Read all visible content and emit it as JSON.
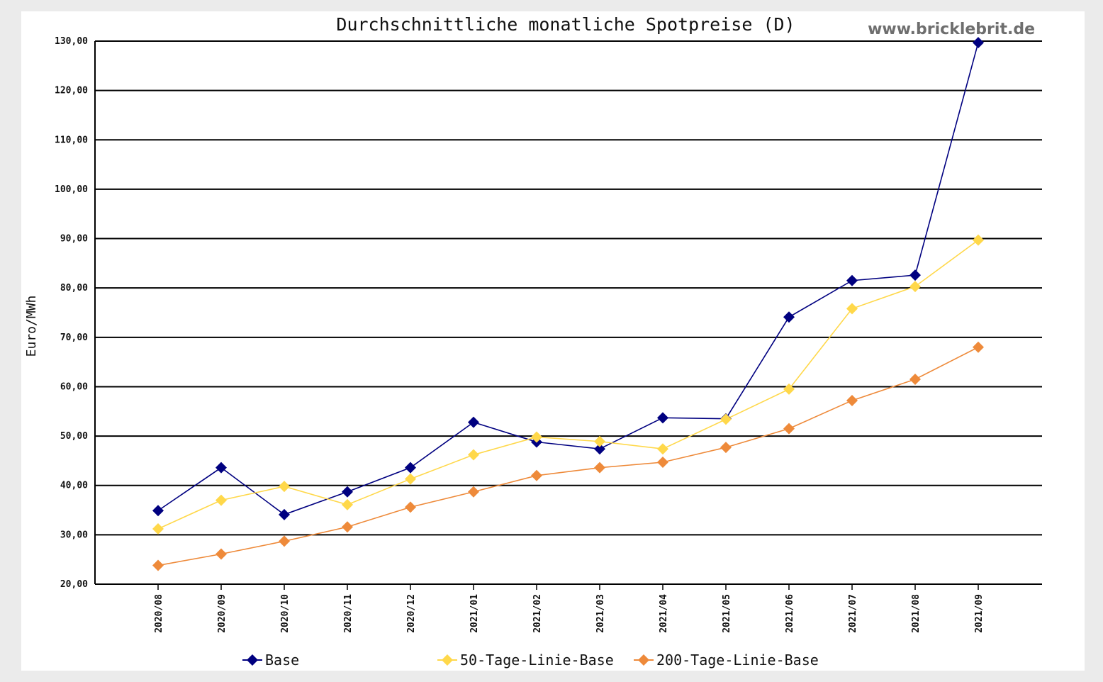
{
  "chart_data": {
    "type": "line",
    "title": "Durchschnittliche monatliche Spotpreise (D)",
    "watermark": "www.bricklebrit.de",
    "ylabel": "Euro/MWh",
    "xlabel": "",
    "ylim": [
      20,
      130
    ],
    "yticks": [
      130,
      120,
      110,
      100,
      90,
      80,
      70,
      60,
      50,
      40,
      30,
      20
    ],
    "ytick_labels": [
      "130,00",
      "120,00",
      "110,00",
      "100,00",
      "90,00",
      "80,00",
      "70,00",
      "60,00",
      "50,00",
      "40,00",
      "30,00",
      "20,00"
    ],
    "grid": true,
    "legend_position": "bottom",
    "categories": [
      "2020/08",
      "2020/09",
      "2020/10",
      "2020/11",
      "2020/12",
      "2021/01",
      "2021/02",
      "2021/03",
      "2021/04",
      "2021/05",
      "2021/06",
      "2021/07",
      "2021/08",
      "2021/09"
    ],
    "series": [
      {
        "name": "Base",
        "color": "#000080",
        "values": [
          34.9,
          43.6,
          34.1,
          38.7,
          43.6,
          52.8,
          48.8,
          47.4,
          53.7,
          53.5,
          74.1,
          81.5,
          82.6,
          129.7
        ]
      },
      {
        "name": "50-Tage-Linie-Base",
        "color": "#ffd84a",
        "values": [
          31.2,
          37.0,
          39.8,
          36.1,
          41.3,
          46.2,
          49.8,
          48.9,
          47.4,
          53.4,
          59.5,
          75.8,
          80.3,
          89.7
        ]
      },
      {
        "name": "200-Tage-Linie-Base",
        "color": "#ee8a3a",
        "values": [
          23.8,
          26.1,
          28.7,
          31.6,
          35.6,
          38.7,
          42.0,
          43.6,
          44.7,
          47.7,
          51.5,
          57.2,
          61.5,
          68.0
        ]
      }
    ]
  }
}
